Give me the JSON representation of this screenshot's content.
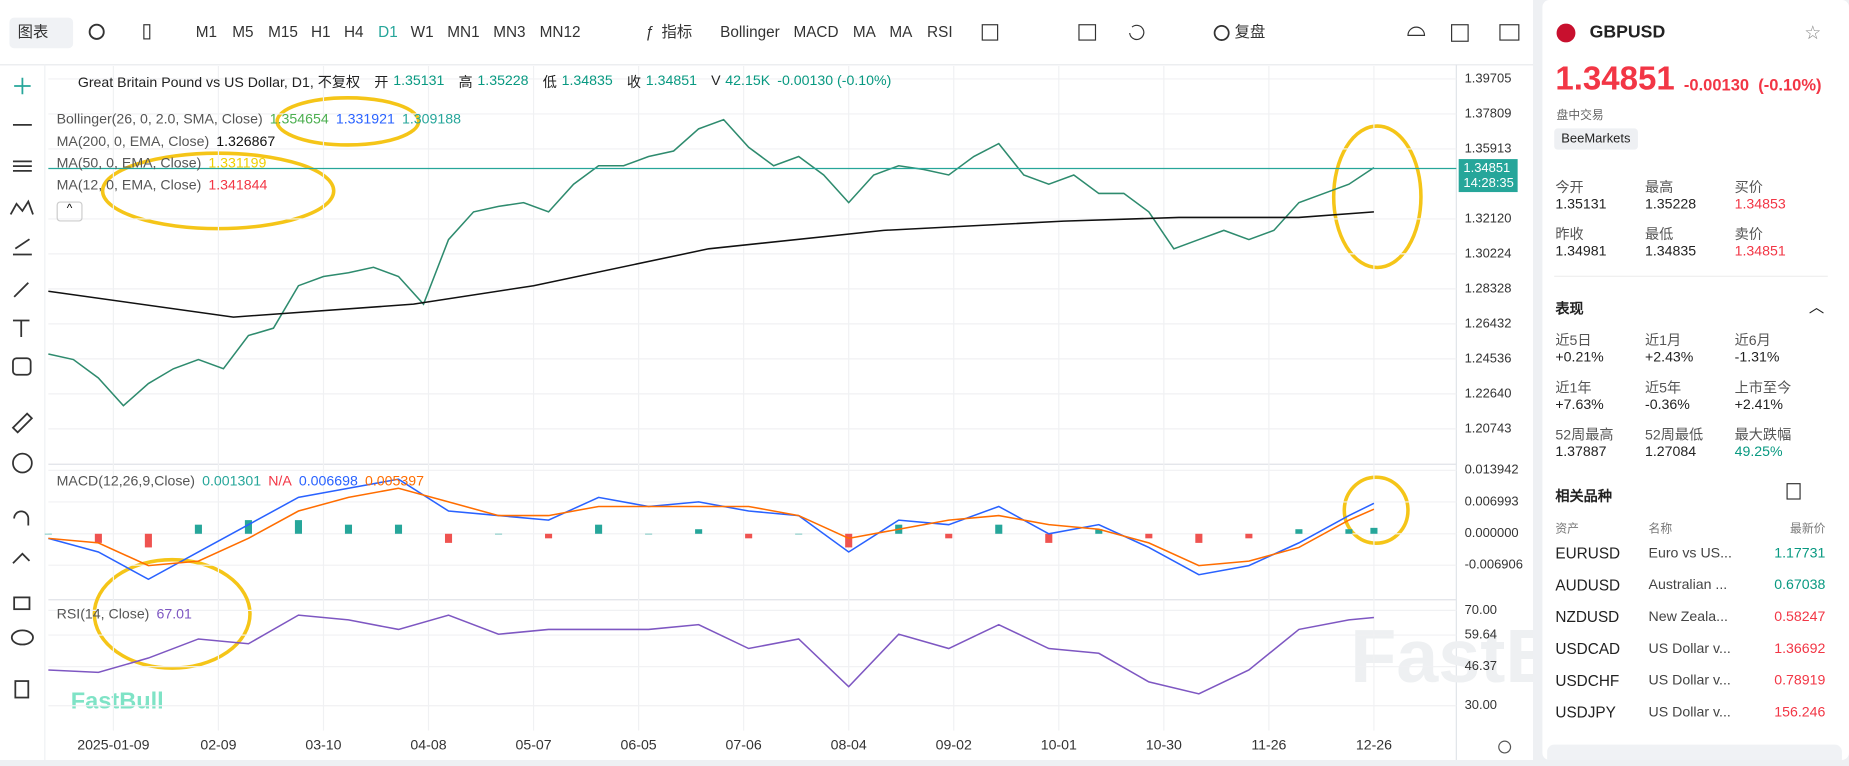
{
  "toolbar": {
    "chart_menu": "图表",
    "timeframes": [
      "M1",
      "M5",
      "M15",
      "H1",
      "H4",
      "D1",
      "W1",
      "MN1",
      "MN3",
      "MN12"
    ],
    "indicators_menu": "指标",
    "indicators": [
      "Bollinger",
      "MACD",
      "MA",
      "MA",
      "RSI"
    ],
    "replay": "复盘"
  },
  "chart": {
    "title": "Great Britain Pound vs US Dollar, D1, 不复权",
    "ohlcv": [
      {
        "label": "开",
        "value": 1.35131
      },
      {
        "label": "高",
        "value": 1.35228
      },
      {
        "label": "低",
        "value": 1.34835
      },
      {
        "label": "收",
        "value": 1.34851
      },
      {
        "label": "V",
        "value": "42.15K"
      }
    ],
    "change": "-0.00130 (-0.10%)",
    "indicators": [
      {
        "name": "Bollinger(26, 0, 2.0, SMA, Close)",
        "values": [
          1.354654,
          1.331921,
          1.309188
        ],
        "colors": [
          "#4caf50",
          "#2962ff",
          "#26a69a"
        ]
      },
      {
        "name": "MA(200, 0, EMA, Close)",
        "values": [
          1.326867
        ],
        "colors": [
          "#111111"
        ]
      },
      {
        "name": "MA(50, 0, EMA, Close)",
        "values": [
          1.331199
        ],
        "colors": [
          "#f0d000"
        ]
      },
      {
        "name": "MA(12, 0, EMA, Close)",
        "values": [
          1.341844
        ],
        "colors": [
          "#f23645"
        ]
      }
    ],
    "xlim": [
      0,
      281
    ],
    "xticks": [
      {
        "value": 13,
        "label": "2025-01-09"
      },
      {
        "value": 34,
        "label": "02-09"
      },
      {
        "value": 55,
        "label": "03-10"
      },
      {
        "value": 76,
        "label": "04-08"
      },
      {
        "value": 97,
        "label": "05-07"
      },
      {
        "value": 118,
        "label": "06-05"
      },
      {
        "value": 139,
        "label": "07-06"
      },
      {
        "value": 160,
        "label": "08-04"
      },
      {
        "value": 181,
        "label": "09-02"
      },
      {
        "value": 202,
        "label": "10-01"
      },
      {
        "value": 223,
        "label": "10-30"
      },
      {
        "value": 244,
        "label": "11-26"
      },
      {
        "value": 265,
        "label": "12-26"
      }
    ],
    "price": {
      "ylim": [
        1.1889,
        1.4047
      ],
      "yticks": [
        1.39705,
        1.37809,
        1.35913,
        {
          "value": 1.3212,
          "label": "1.32120"
        },
        1.30224,
        1.28328,
        1.26432,
        1.24536,
        {
          "value": 1.2264,
          "label": "1.22640"
        },
        1.20743
      ],
      "last": 1.34851,
      "countdown": "14:28:35",
      "last_color": "#26a69a",
      "series": [
        {
          "color": "#2e8b6e",
          "x": [
            0,
            5,
            10,
            15,
            20,
            25,
            30,
            35,
            40,
            45,
            50,
            55,
            60,
            65,
            70,
            75,
            80,
            85,
            90,
            95,
            100,
            105,
            110,
            115,
            120,
            125,
            130,
            135,
            140,
            145,
            150,
            155,
            160,
            165,
            170,
            175,
            180,
            185,
            190,
            195,
            200,
            205,
            210,
            215,
            220,
            225,
            230,
            235,
            240,
            245,
            250,
            255,
            260,
            265
          ],
          "values": [
            1.248,
            1.245,
            1.235,
            1.22,
            1.232,
            1.24,
            1.245,
            1.24,
            1.258,
            1.262,
            1.285,
            1.29,
            1.292,
            1.295,
            1.29,
            1.275,
            1.31,
            1.325,
            1.328,
            1.33,
            1.325,
            1.34,
            1.35,
            1.35,
            1.355,
            1.358,
            1.37,
            1.375,
            1.36,
            1.35,
            1.355,
            1.345,
            1.33,
            1.345,
            1.35,
            1.348,
            1.345,
            1.355,
            1.362,
            1.345,
            1.34,
            1.345,
            1.335,
            1.335,
            1.325,
            1.305,
            1.31,
            1.315,
            1.31,
            1.315,
            1.33,
            1.335,
            1.34,
            1.349
          ]
        },
        {
          "color": "#111111",
          "x": [
            0,
            37,
            73,
            97,
            132,
            167,
            203,
            226,
            250,
            265
          ],
          "values": [
            1.282,
            1.268,
            1.275,
            1.285,
            1.305,
            1.315,
            1.32,
            1.322,
            1.322,
            1.325
          ]
        }
      ]
    },
    "macd": {
      "label": "MACD(12,26,9,Close)",
      "legend": [
        0.001301,
        "N/A",
        0.006698,
        0.005397
      ],
      "legend_colors": [
        "#26a69a",
        "#f23645",
        "#2962ff",
        "#ff6d00"
      ],
      "ylim": [
        -0.01424,
        0.01502
      ],
      "yticks": [
        0.013942,
        0.006993,
        {
          "value": 0,
          "label": "0.000000"
        },
        -0.006906
      ],
      "histogram": {
        "colors": [
          "#26a69a",
          "#ef5350"
        ],
        "x": [
          0,
          10,
          20,
          30,
          40,
          50,
          60,
          70,
          80,
          90,
          100,
          110,
          120,
          130,
          140,
          150,
          160,
          170,
          180,
          190,
          200,
          210,
          220,
          230,
          240,
          250,
          260,
          265
        ],
        "values": [
          0,
          -0.002,
          -0.003,
          0.002,
          0.003,
          0.003,
          0.002,
          0.002,
          -0.002,
          0,
          -0.001,
          0.002,
          0,
          0.001,
          -0.001,
          0,
          -0.003,
          0.002,
          -0.001,
          0.002,
          -0.002,
          0.001,
          -0.001,
          -0.002,
          -0.001,
          0.001,
          0.001,
          0.001301
        ]
      },
      "series": [
        {
          "color": "#2962ff",
          "x": [
            0,
            10,
            20,
            30,
            40,
            50,
            60,
            70,
            80,
            90,
            100,
            110,
            120,
            130,
            140,
            150,
            160,
            170,
            180,
            190,
            200,
            210,
            220,
            230,
            240,
            250,
            260,
            265
          ],
          "values": [
            -0.001,
            -0.004,
            -0.01,
            -0.004,
            0.002,
            0.008,
            0.01,
            0.012,
            0.005,
            0.004,
            0.003,
            0.008,
            0.006,
            0.007,
            0.005,
            0.004,
            -0.004,
            0.003,
            0.002,
            0.006,
            0,
            0.002,
            -0.003,
            -0.009,
            -0.007,
            -0.002,
            0.004,
            0.006698
          ]
        },
        {
          "color": "#ff6d00",
          "x": [
            0,
            10,
            20,
            30,
            40,
            50,
            60,
            70,
            80,
            90,
            100,
            110,
            120,
            130,
            140,
            150,
            160,
            170,
            180,
            190,
            200,
            210,
            220,
            230,
            240,
            250,
            260,
            265
          ],
          "values": [
            -0.001,
            -0.002,
            -0.007,
            -0.006,
            -0.001,
            0.005,
            0.008,
            0.01,
            0.007,
            0.004,
            0.004,
            0.006,
            0.006,
            0.006,
            0.006,
            0.004,
            -0.001,
            0.001,
            0.003,
            0.004,
            0.002,
            0.001,
            -0.002,
            -0.007,
            -0.006,
            -0.003,
            0.003,
            0.005397
          ]
        }
      ]
    },
    "rsi": {
      "label": "RSI(14, Close)",
      "legend": 67.01,
      "ylim": [
        19.6,
        73.95
      ],
      "yticks": [
        {
          "value": 70,
          "label": "70.00"
        },
        59.64,
        46.37,
        {
          "value": 30,
          "label": "30.00"
        }
      ],
      "series": [
        {
          "color": "#7e57c2",
          "x": [
            0,
            10,
            20,
            30,
            40,
            50,
            60,
            70,
            80,
            90,
            100,
            110,
            120,
            130,
            140,
            150,
            160,
            170,
            180,
            190,
            200,
            210,
            220,
            230,
            240,
            250,
            260,
            265
          ],
          "values": [
            45,
            44,
            50,
            58,
            56,
            68,
            66,
            62,
            68,
            60,
            62,
            62,
            62,
            64,
            54,
            58,
            38,
            60,
            54,
            64,
            54,
            52,
            40,
            35,
            45,
            62,
            66,
            67.01
          ]
        }
      ]
    }
  },
  "watermark": "FastBull",
  "sidebar": {
    "symbol": "GBPUSD",
    "price": 1.34851,
    "change": "-0.00130",
    "change_pct": "(-0.10%)",
    "session": "盘中交易",
    "broker": "BeeMarkets",
    "quote": [
      {
        "label": "今开",
        "value": 1.35131
      },
      {
        "label": "最高",
        "value": 1.35228
      },
      {
        "label": "买价",
        "value": 1.34853
      },
      {
        "label": "昨收",
        "value": 1.34981
      },
      {
        "label": "最低",
        "value": 1.34835
      },
      {
        "label": "卖价",
        "value": 1.34851
      }
    ],
    "performance_title": "表现",
    "performance": [
      {
        "label": "近5日",
        "value": "+0.21%"
      },
      {
        "label": "近1月",
        "value": "+2.43%"
      },
      {
        "label": "近6月",
        "value": "-1.31%"
      },
      {
        "label": "近1年",
        "value": "+7.63%"
      },
      {
        "label": "近5年",
        "value": "-0.36%"
      },
      {
        "label": "上市至今",
        "value": "+2.41%"
      },
      {
        "label": "52周最高",
        "value": 1.37887
      },
      {
        "label": "52周最低",
        "value": 1.27084
      },
      {
        "label": "最大跌幅",
        "value": "49.25%"
      }
    ],
    "related_title": "相关品种",
    "related_headers": [
      "资产",
      "名称",
      "最新价"
    ],
    "related": [
      {
        "asset": "EURUSD",
        "name": "Euro vs US...",
        "last": 1.17731
      },
      {
        "asset": "AUDUSD",
        "name": "Australian ...",
        "last": 0.67038
      },
      {
        "asset": "NZDUSD",
        "name": "New Zeala...",
        "last": 0.58247
      },
      {
        "asset": "USDCAD",
        "name": "US Dollar v...",
        "last": 1.36692
      },
      {
        "asset": "USDCHF",
        "name": "US Dollar v...",
        "last": 0.78919
      },
      {
        "asset": "USDJPY",
        "name": "US Dollar v...",
        "last": 156.246
      }
    ]
  }
}
